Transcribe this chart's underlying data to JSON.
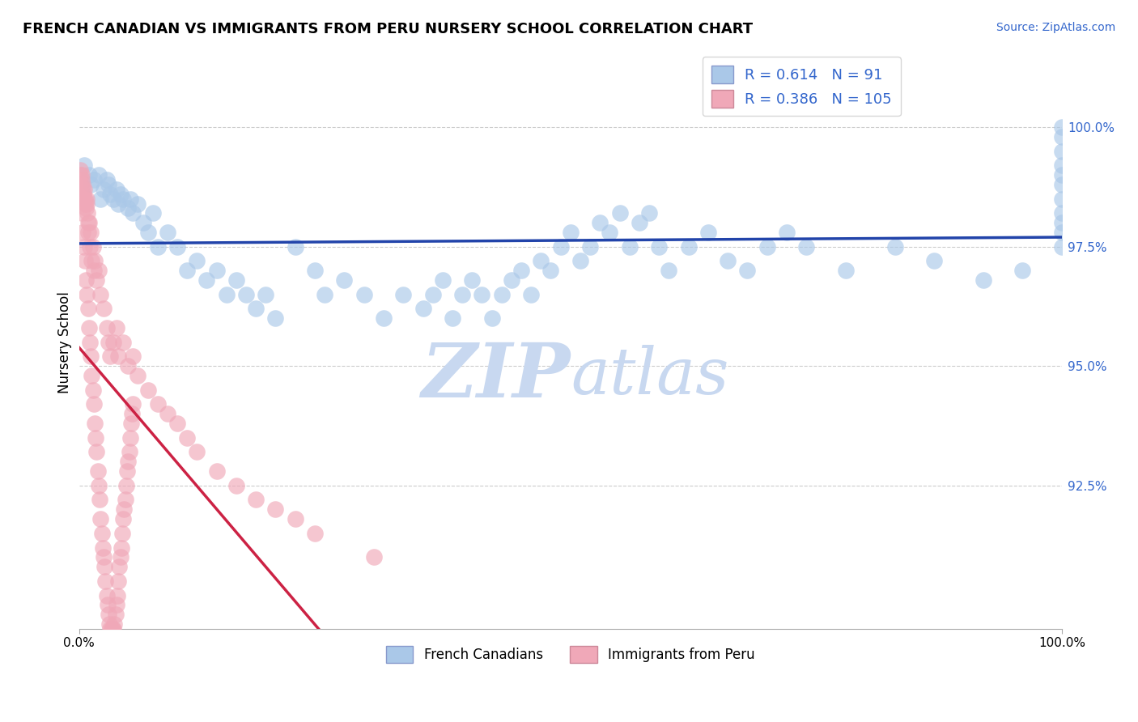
{
  "title": "FRENCH CANADIAN VS IMMIGRANTS FROM PERU NURSERY SCHOOL CORRELATION CHART",
  "source_text": "Source: ZipAtlas.com",
  "ylabel": "Nursery School",
  "xlim": [
    0.0,
    100.0
  ],
  "ylim": [
    89.5,
    101.5
  ],
  "ytick_vals": [
    92.5,
    95.0,
    97.5,
    100.0
  ],
  "ytick_labels": [
    "92.5%",
    "95.0%",
    "97.5%",
    "100.0%"
  ],
  "xtick_vals": [
    0,
    100
  ],
  "xtick_labels": [
    "0.0%",
    "100.0%"
  ],
  "legend_blue_r": "0.614",
  "legend_blue_n": "91",
  "legend_pink_r": "0.386",
  "legend_pink_n": "105",
  "legend_label_blue": "French Canadians",
  "legend_label_pink": "Immigrants from Peru",
  "blue_color": "#aac8e8",
  "pink_color": "#f0a8b8",
  "blue_line_color": "#2244aa",
  "pink_line_color": "#cc2244",
  "watermark_color": "#c8d8f0",
  "grid_color": "#aaaaaa",
  "title_fontsize": 13,
  "source_fontsize": 10,
  "tick_fontsize": 11,
  "legend_fontsize": 13,
  "blue_x": [
    0.5,
    1.0,
    1.2,
    1.5,
    2.0,
    2.2,
    2.5,
    2.8,
    3.0,
    3.2,
    3.5,
    3.8,
    4.0,
    4.2,
    4.5,
    5.0,
    5.2,
    5.5,
    6.0,
    6.5,
    7.0,
    7.5,
    8.0,
    9.0,
    10.0,
    11.0,
    12.0,
    13.0,
    14.0,
    15.0,
    16.0,
    17.0,
    18.0,
    19.0,
    20.0,
    22.0,
    24.0,
    25.0,
    27.0,
    29.0,
    31.0,
    33.0,
    35.0,
    36.0,
    37.0,
    38.0,
    39.0,
    40.0,
    41.0,
    42.0,
    43.0,
    44.0,
    45.0,
    46.0,
    47.0,
    48.0,
    49.0,
    50.0,
    51.0,
    52.0,
    53.0,
    54.0,
    55.0,
    56.0,
    57.0,
    58.0,
    59.0,
    60.0,
    62.0,
    64.0,
    66.0,
    68.0,
    70.0,
    72.0,
    74.0,
    78.0,
    83.0,
    87.0,
    92.0,
    96.0,
    100.0,
    100.0,
    100.0,
    100.0,
    100.0,
    100.0,
    100.0,
    100.0,
    100.0,
    100.0,
    100.0
  ],
  "blue_y": [
    99.2,
    99.0,
    98.8,
    98.9,
    99.0,
    98.5,
    98.7,
    98.9,
    98.8,
    98.6,
    98.5,
    98.7,
    98.4,
    98.6,
    98.5,
    98.3,
    98.5,
    98.2,
    98.4,
    98.0,
    97.8,
    98.2,
    97.5,
    97.8,
    97.5,
    97.0,
    97.2,
    96.8,
    97.0,
    96.5,
    96.8,
    96.5,
    96.2,
    96.5,
    96.0,
    97.5,
    97.0,
    96.5,
    96.8,
    96.5,
    96.0,
    96.5,
    96.2,
    96.5,
    96.8,
    96.0,
    96.5,
    96.8,
    96.5,
    96.0,
    96.5,
    96.8,
    97.0,
    96.5,
    97.2,
    97.0,
    97.5,
    97.8,
    97.2,
    97.5,
    98.0,
    97.8,
    98.2,
    97.5,
    98.0,
    98.2,
    97.5,
    97.0,
    97.5,
    97.8,
    97.2,
    97.0,
    97.5,
    97.8,
    97.5,
    97.0,
    97.5,
    97.2,
    96.8,
    97.0,
    100.0,
    99.8,
    99.5,
    99.2,
    99.0,
    98.8,
    98.5,
    98.2,
    98.0,
    97.8,
    97.5
  ],
  "pink_x": [
    0.1,
    0.15,
    0.2,
    0.25,
    0.3,
    0.35,
    0.4,
    0.45,
    0.5,
    0.55,
    0.6,
    0.65,
    0.7,
    0.75,
    0.8,
    0.85,
    0.9,
    0.95,
    1.0,
    1.1,
    1.2,
    1.3,
    1.4,
    1.5,
    1.6,
    1.8,
    2.0,
    2.2,
    2.5,
    2.8,
    3.0,
    3.2,
    3.5,
    3.8,
    4.0,
    4.5,
    5.0,
    5.5,
    6.0,
    7.0,
    8.0,
    9.0,
    10.0,
    11.0,
    12.0,
    14.0,
    16.0,
    18.0,
    20.0,
    22.0,
    24.0,
    0.3,
    0.4,
    0.5,
    0.6,
    0.7,
    0.8,
    0.9,
    1.0,
    1.1,
    1.2,
    1.3,
    1.4,
    1.5,
    1.6,
    1.7,
    1.8,
    1.9,
    2.0,
    2.1,
    2.2,
    2.3,
    2.4,
    2.5,
    2.6,
    2.7,
    2.8,
    2.9,
    3.0,
    3.1,
    3.2,
    3.3,
    3.4,
    3.5,
    3.6,
    3.7,
    3.8,
    3.9,
    4.0,
    4.1,
    4.2,
    4.3,
    4.4,
    4.5,
    4.6,
    4.7,
    4.8,
    4.9,
    5.0,
    5.1,
    5.2,
    5.3,
    5.4,
    5.5,
    30.0
  ],
  "pink_y": [
    99.0,
    99.1,
    98.8,
    99.0,
    98.9,
    98.7,
    98.8,
    98.6,
    98.5,
    98.7,
    98.4,
    98.5,
    98.3,
    98.5,
    98.4,
    98.2,
    98.0,
    97.8,
    98.0,
    97.5,
    97.8,
    97.2,
    97.5,
    97.0,
    97.2,
    96.8,
    97.0,
    96.5,
    96.2,
    95.8,
    95.5,
    95.2,
    95.5,
    95.8,
    95.2,
    95.5,
    95.0,
    95.2,
    94.8,
    94.5,
    94.2,
    94.0,
    93.8,
    93.5,
    93.2,
    92.8,
    92.5,
    92.2,
    92.0,
    91.8,
    91.5,
    98.2,
    97.8,
    97.5,
    97.2,
    96.8,
    96.5,
    96.2,
    95.8,
    95.5,
    95.2,
    94.8,
    94.5,
    94.2,
    93.8,
    93.5,
    93.2,
    92.8,
    92.5,
    92.2,
    91.8,
    91.5,
    91.2,
    91.0,
    90.8,
    90.5,
    90.2,
    90.0,
    89.8,
    89.6,
    89.5,
    89.5,
    89.5,
    89.5,
    89.6,
    89.8,
    90.0,
    90.2,
    90.5,
    90.8,
    91.0,
    91.2,
    91.5,
    91.8,
    92.0,
    92.2,
    92.5,
    92.8,
    93.0,
    93.2,
    93.5,
    93.8,
    94.0,
    94.2,
    91.0
  ]
}
